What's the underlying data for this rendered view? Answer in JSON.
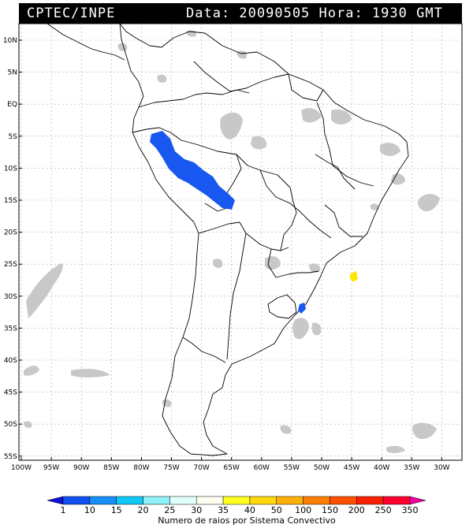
{
  "header": {
    "source": "CPTEC/INPE",
    "datetime": "Data: 20090505 Hora: 1930 GMT"
  },
  "map": {
    "lat_labels": [
      "10N",
      "5N",
      "EQ",
      "5S",
      "10S",
      "15S",
      "20S",
      "25S",
      "30S",
      "35S",
      "40S",
      "45S",
      "50S",
      "55S"
    ],
    "lon_labels": [
      "100W",
      "95W",
      "90W",
      "85W",
      "80W",
      "75W",
      "70W",
      "65W",
      "60W",
      "55W",
      "50W",
      "45W",
      "40W",
      "35W",
      "30W"
    ],
    "lat_range": [
      -56,
      14
    ],
    "lon_range": [
      -100,
      -27
    ],
    "grid": true
  },
  "legend": {
    "values": [
      "1",
      "10",
      "15",
      "20",
      "25",
      "30",
      "35",
      "40",
      "50",
      "100",
      "150",
      "200",
      "250",
      "350"
    ],
    "title": "Numero de raios por Sistema Convectivo",
    "colors": [
      "#1010d8",
      "#1050f0",
      "#1590f8",
      "#10c8f8",
      "#90f0f8",
      "#e0fff8",
      "#fffff0",
      "#ffff20",
      "#ffd810",
      "#ffb008",
      "#ff8000",
      "#ff5000",
      "#f82000",
      "#ff0030",
      "#f000a0"
    ]
  },
  "lightning_systems": [
    {
      "name": "amazon-andes-band",
      "level": "10-15",
      "color": "#1858f0"
    },
    {
      "name": "south-brazil-cell",
      "level": "10-15",
      "color": "#1858f0"
    },
    {
      "name": "atlantic-cell",
      "level": "40-50",
      "color": "#ffe800"
    }
  ],
  "colors": {
    "cloud": "#c8c8c8",
    "border": "#000000",
    "background": "#ffffff"
  }
}
